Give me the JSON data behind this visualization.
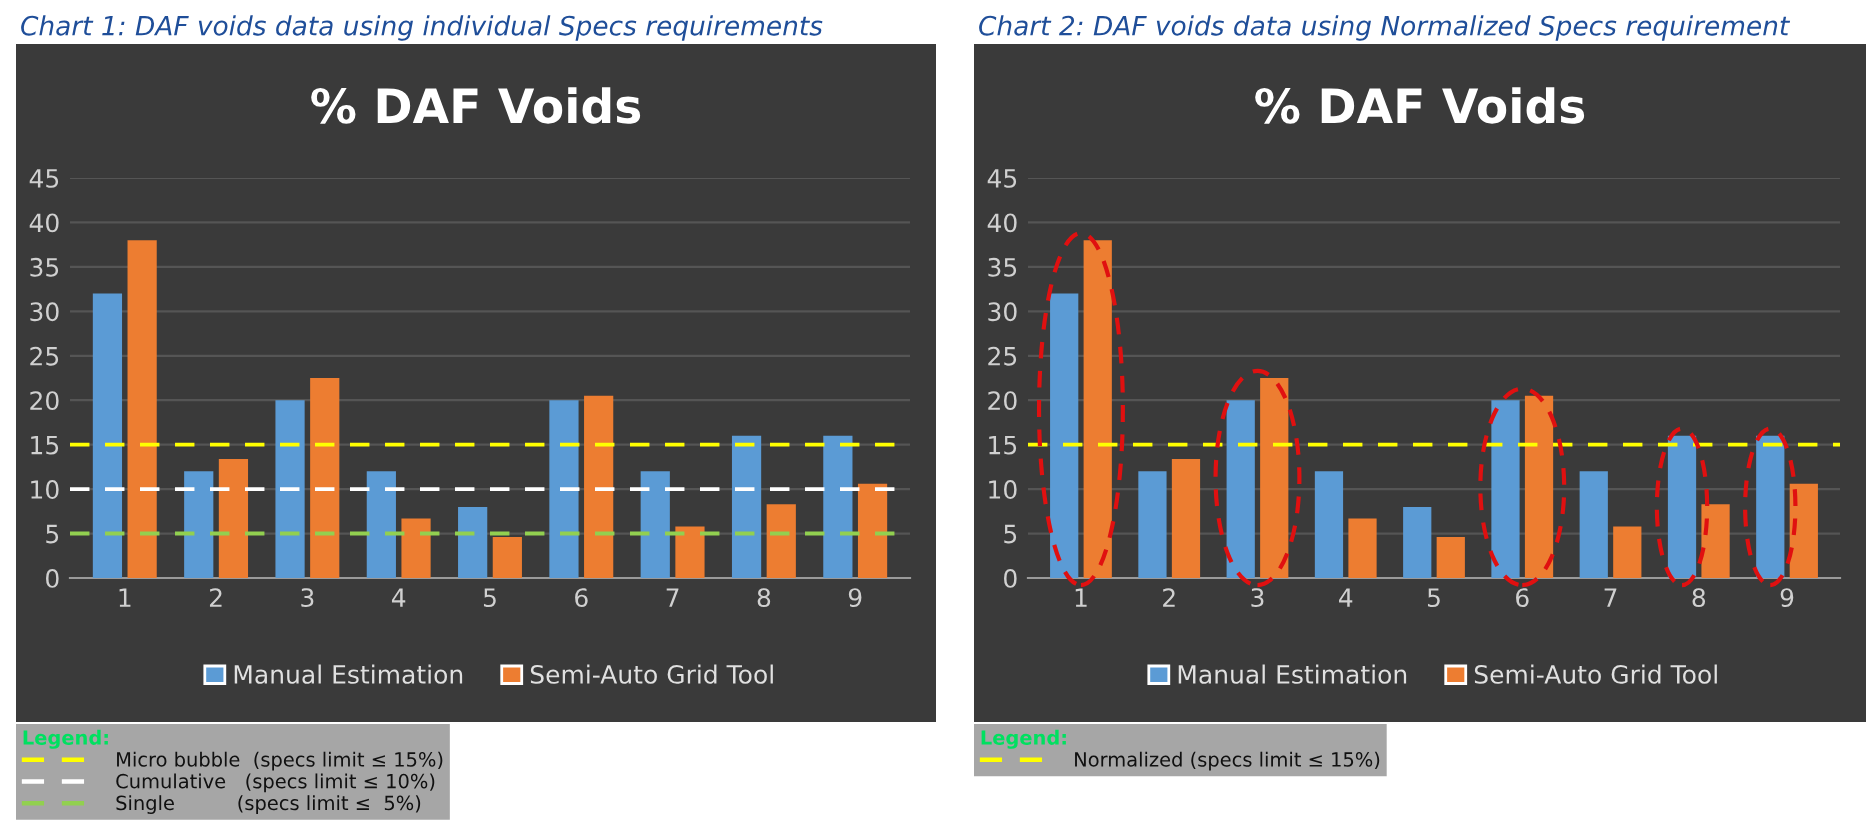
{
  "chart_data": [
    {
      "type": "bar",
      "subtitle": "Chart 1: DAF voids data using individual Specs requirements",
      "title": "% DAF Voids",
      "categories": [
        "1",
        "2",
        "3",
        "4",
        "5",
        "6",
        "7",
        "8",
        "9"
      ],
      "series": [
        {
          "name": "Manual Estimation",
          "color": "#5b9bd5",
          "values": [
            32,
            12,
            20,
            12,
            8,
            20,
            12,
            16,
            16
          ]
        },
        {
          "name": "Semi-Auto Grid Tool",
          "color": "#ed7d31",
          "values": [
            38,
            13.4,
            22.5,
            6.7,
            4.6,
            20.5,
            5.8,
            8.3,
            10.6
          ]
        }
      ],
      "ylim": [
        0,
        45
      ],
      "yticks": [
        0,
        5,
        10,
        15,
        20,
        25,
        30,
        35,
        40,
        45
      ],
      "grid": "y",
      "legend": "bottom",
      "ref_lines": [
        {
          "axis": "y",
          "value": 15,
          "label": "Micro bubble  (specs limit ≤ 15%)",
          "color": "#ffff00",
          "line_style": "dashed"
        },
        {
          "axis": "y",
          "value": 10,
          "label": "Cumulative   (specs limit ≤ 10%)",
          "color": "#ffffff",
          "line_style": "dashed"
        },
        {
          "axis": "y",
          "value": 5,
          "label": "Single          (specs limit ≤  5%)",
          "color": "#92d050",
          "line_style": "dashed"
        }
      ],
      "annotations": [
        "Legend:"
      ]
    },
    {
      "type": "bar",
      "subtitle": "Chart 2: DAF voids data using Normalized Specs requirement",
      "title": "% DAF Voids",
      "categories": [
        "1",
        "2",
        "3",
        "4",
        "5",
        "6",
        "7",
        "8",
        "9"
      ],
      "series": [
        {
          "name": "Manual Estimation",
          "color": "#5b9bd5",
          "values": [
            32,
            12,
            20,
            12,
            8,
            20,
            12,
            16,
            16
          ]
        },
        {
          "name": "Semi-Auto Grid Tool",
          "color": "#ed7d31",
          "values": [
            38,
            13.4,
            22.5,
            6.7,
            4.6,
            20.5,
            5.8,
            8.3,
            10.6
          ]
        }
      ],
      "ylim": [
        0,
        45
      ],
      "yticks": [
        0,
        5,
        10,
        15,
        20,
        25,
        30,
        35,
        40,
        45
      ],
      "grid": "y",
      "legend": "bottom",
      "ref_lines": [
        {
          "axis": "y",
          "value": 15,
          "label": "Normalized (specs limit ≤ 15%)",
          "color": "#ffff00",
          "line_style": "dashed"
        }
      ],
      "annotations": [
        "Legend:"
      ]
    }
  ]
}
